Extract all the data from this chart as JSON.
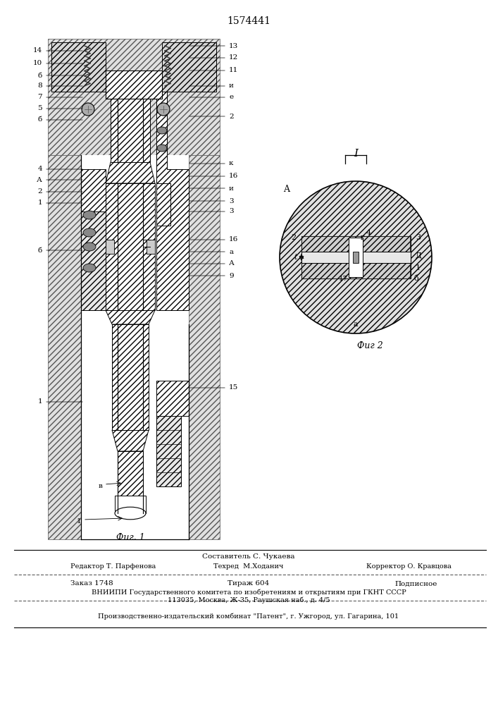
{
  "patent_number": "1574441",
  "background_color": "#f5f5f5",
  "fig_width": 7.07,
  "fig_height": 10.0,
  "dpi": 100,
  "fig1_caption": "Фиг. 1",
  "fig2_caption": "Фиг 2",
  "footer_line1_center": "Составитель С. Чукаева",
  "footer_line2_left": "Редактор Т. Парфенова",
  "footer_line2_center": "Техред  М.Ходанич",
  "footer_line2_right": "Корректор О. Кравцова",
  "footer_order": "Заказ 1748",
  "footer_tirazh": "Тираж 604",
  "footer_podp": "Подписное",
  "footer_vniip1": "ВНИИПИ Государственного комитета по изобретениям и открытиям при ГКНТ СССР",
  "footer_vniip2": "113035, Москва, Ж-35, Раушская наб., д. 4/5",
  "footer_patent": "Производственно-издательский комбинат \"Патент\", г. Ужгород, ул. Гагарина, 101"
}
